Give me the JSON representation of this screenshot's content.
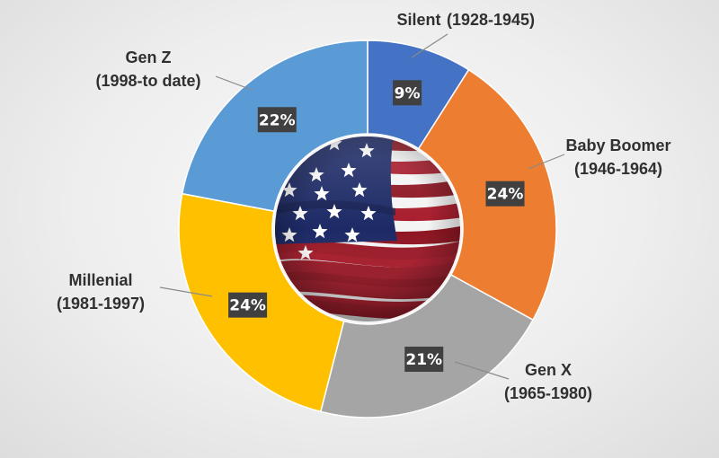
{
  "chart_data": {
    "type": "pie",
    "variant": "donut",
    "center_image": "american-flag",
    "slices": [
      {
        "name": "Silent",
        "range": "(1928-1945)",
        "value": 9,
        "label": "9%",
        "color": "#4472C4"
      },
      {
        "name": "Baby Boomer",
        "range": "(1946-1964)",
        "value": 24,
        "label": "24%",
        "color": "#ED7D31"
      },
      {
        "name": "Gen X",
        "range": "(1965-1980)",
        "value": 21,
        "label": "21%",
        "color": "#A5A5A5"
      },
      {
        "name": "Millenial",
        "range": "(1981-1997)",
        "value": 24,
        "label": "24%",
        "color": "#FFC000"
      },
      {
        "name": "Gen Z",
        "range": "(1998-to date)",
        "value": 22,
        "label": "22%",
        "color": "#5B9BD5"
      }
    ]
  }
}
